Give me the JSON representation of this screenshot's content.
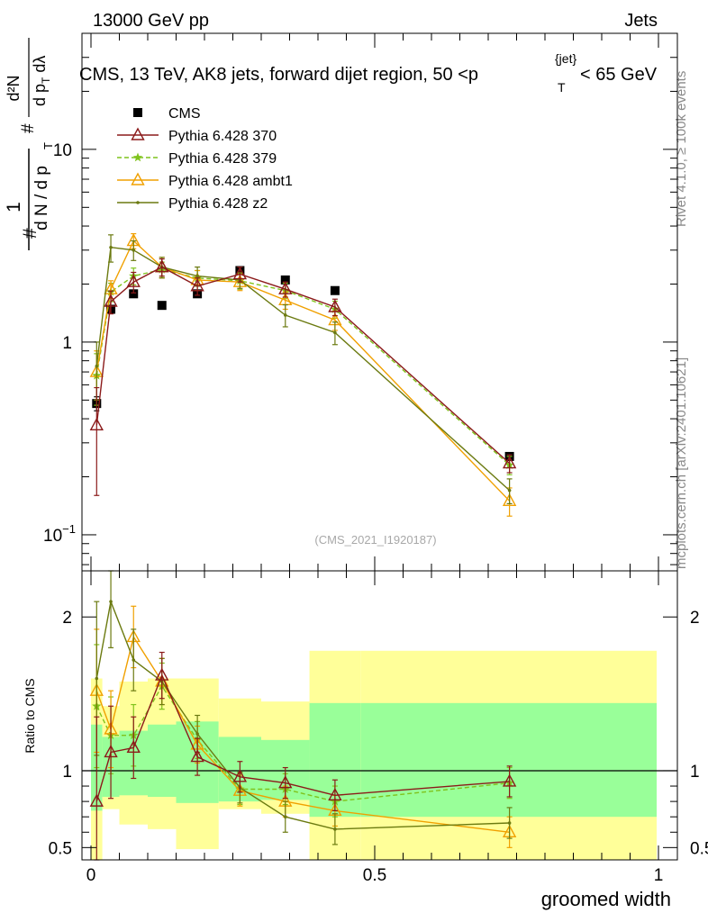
{
  "header": {
    "left": "13000 GeV pp",
    "right": "Jets"
  },
  "plot_title": {
    "prefix": "CMS, 13 TeV, AK8 jets, forward dijet region, 50 <p",
    "sub": "T",
    "sup": "{jet}",
    "suffix": "< 65 GeV"
  },
  "side_labels": {
    "rivet": "Rivet 4.1.0, ≥ 100k events",
    "mcplots": "mcplots.cern.ch [arXiv:2401.10621]"
  },
  "analysis_id": "(CMS_2021_I1920187)",
  "colors": {
    "cms": "#000000",
    "p370": "#8b1a1a",
    "p379": "#7fc31c",
    "ambt1": "#f0a000",
    "z2": "#6b7a10",
    "band_yellow": "#ffff99",
    "band_green": "#99ff99"
  },
  "chart_data": [
    {
      "type": "line",
      "panel": "main",
      "yscale": "log",
      "ylabel": {
        "outer_num": "1",
        "outer_den": "d N / d p",
        "outer_den_sub": "T",
        "inner_num": "d²N",
        "inner_den": "d p",
        "inner_den_sub": "T",
        "inner_den_tail": " dλ"
      },
      "xlim": [
        0,
        1
      ],
      "ylim": [
        0.065,
        40
      ],
      "y_ticks": [
        {
          "value": 0.1,
          "base": "10",
          "exp": "−1"
        },
        {
          "value": 1,
          "label": "1"
        },
        {
          "value": 10,
          "label": "10"
        }
      ],
      "bin_edges": [
        0,
        0.02,
        0.05,
        0.1,
        0.15,
        0.225,
        0.3,
        0.385,
        0.475,
        1.0
      ],
      "x": [
        0.01,
        0.035,
        0.075,
        0.125,
        0.1875,
        0.2625,
        0.3425,
        0.43,
        0.7375
      ],
      "legend": [
        "CMS",
        "Pythia 6.428 370",
        "Pythia 6.428 379",
        "Pythia 6.428 ambt1",
        "Pythia 6.428 z2"
      ],
      "series": [
        {
          "name": "CMS",
          "key": "cms",
          "marker": "square",
          "dash": "",
          "values": [
            0.48,
            1.48,
            1.78,
            1.55,
            1.78,
            2.35,
            2.1,
            1.85,
            0.255
          ],
          "err": [
            0.04,
            0.05,
            0.05,
            0.05,
            0.05,
            0.06,
            0.05,
            0.05,
            0.01
          ]
        },
        {
          "name": "Pythia 6.428 370",
          "key": "p370",
          "marker": "triangle",
          "dash": "",
          "values": [
            0.37,
            1.62,
            2.05,
            2.45,
            1.95,
            2.25,
            1.88,
            1.52,
            0.235
          ],
          "err": [
            0.21,
            0.22,
            0.25,
            0.25,
            0.2,
            0.2,
            0.17,
            0.15,
            0.025
          ]
        },
        {
          "name": "Pythia 6.428 379",
          "key": "p379",
          "marker": "star",
          "dash": "5,3",
          "values": [
            0.67,
            1.82,
            2.2,
            2.38,
            2.15,
            2.08,
            1.85,
            1.48,
            0.23
          ],
          "err": [
            0.2,
            0.2,
            0.22,
            0.22,
            0.2,
            0.2,
            0.17,
            0.15,
            0.025
          ]
        },
        {
          "name": "Pythia 6.428 ambt1",
          "key": "ambt1",
          "marker": "triangle",
          "dash": "",
          "values": [
            0.7,
            1.88,
            3.35,
            2.45,
            2.1,
            2.05,
            1.65,
            1.3,
            0.15
          ],
          "err": [
            0.2,
            0.2,
            0.3,
            0.3,
            0.25,
            0.2,
            0.17,
            0.15,
            0.025
          ]
        },
        {
          "name": "Pythia 6.428 z2",
          "key": "z2",
          "marker": "dot",
          "dash": "",
          "values": [
            0.75,
            3.1,
            3.0,
            2.45,
            2.2,
            2.1,
            1.38,
            1.12,
            0.17
          ],
          "err": [
            0.25,
            0.5,
            0.35,
            0.3,
            0.25,
            0.2,
            0.18,
            0.15,
            0.025
          ]
        }
      ]
    },
    {
      "type": "line",
      "panel": "ratio",
      "ylabel": "Ratio to CMS",
      "xlabel": "groomed width",
      "xlim": [
        0,
        1
      ],
      "ylim": [
        0.42,
        2.3
      ],
      "x_ticks": [
        {
          "value": 0,
          "label": "0"
        },
        {
          "value": 0.5,
          "label": "0.5"
        },
        {
          "value": 1,
          "label": "1"
        }
      ],
      "y_ticks": [
        {
          "value": 0.5,
          "label": "0.5"
        },
        {
          "value": 1,
          "label": "1"
        },
        {
          "value": 2,
          "label": "2"
        }
      ],
      "bin_edges": [
        0,
        0.02,
        0.05,
        0.1,
        0.15,
        0.225,
        0.3,
        0.385,
        0.475,
        1.0
      ],
      "band_outer_lo": [
        0.25,
        0.75,
        0.65,
        0.62,
        0.49,
        0.75,
        0.72,
        0.23,
        0.23
      ],
      "band_outer_hi": [
        1.6,
        1.42,
        1.58,
        1.6,
        1.6,
        1.47,
        1.45,
        1.78,
        1.78
      ],
      "band_inner_lo": [
        0.74,
        0.83,
        0.84,
        0.83,
        0.79,
        0.8,
        0.81,
        0.7,
        0.7
      ],
      "band_inner_hi": [
        1.3,
        1.22,
        1.26,
        1.3,
        1.32,
        1.22,
        1.2,
        1.44,
        1.44
      ],
      "x": [
        0.01,
        0.035,
        0.075,
        0.125,
        0.1875,
        0.2625,
        0.3425,
        0.43,
        0.7375
      ],
      "reference": 1.0,
      "series": [
        {
          "name": "Pythia 6.428 370",
          "key": "p370",
          "marker": "triangle",
          "dash": "",
          "values": [
            0.8,
            1.12,
            1.15,
            1.62,
            1.09,
            0.96,
            0.92,
            0.84,
            0.93
          ],
          "err": [
            0.55,
            0.3,
            0.2,
            0.15,
            0.12,
            0.1,
            0.1,
            0.1,
            0.1
          ]
        },
        {
          "name": "Pythia 6.428 379",
          "key": "p379",
          "marker": "star",
          "dash": "5,3",
          "values": [
            1.42,
            1.23,
            1.23,
            1.55,
            1.2,
            0.88,
            0.88,
            0.8,
            0.92
          ],
          "err": [
            0.4,
            0.25,
            0.2,
            0.15,
            0.12,
            0.1,
            0.1,
            0.1,
            0.1
          ]
        },
        {
          "name": "Pythia 6.428 ambt1",
          "key": "ambt1",
          "marker": "triangle",
          "dash": "",
          "values": [
            1.52,
            1.27,
            1.87,
            1.58,
            1.17,
            0.87,
            0.8,
            0.74,
            0.6
          ],
          "err": [
            0.4,
            0.25,
            0.2,
            0.15,
            0.12,
            0.1,
            0.1,
            0.1,
            0.1
          ]
        },
        {
          "name": "Pythia 6.428 z2",
          "key": "z2",
          "marker": "dot",
          "dash": "",
          "values": [
            1.6,
            2.1,
            1.72,
            1.58,
            1.24,
            0.89,
            0.7,
            0.62,
            0.66
          ],
          "err": [
            0.5,
            0.3,
            0.2,
            0.15,
            0.12,
            0.1,
            0.1,
            0.1,
            0.1
          ]
        }
      ]
    }
  ]
}
